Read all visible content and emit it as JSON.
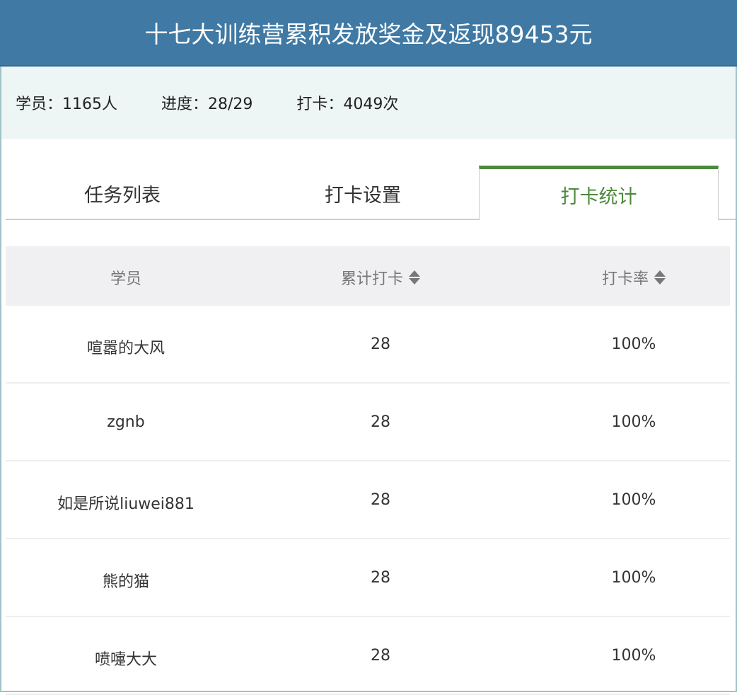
{
  "header": {
    "title": "十七大训练营累积发放奖金及返现89453元"
  },
  "stats": {
    "students": "学员：1165人",
    "progress": "进度：28/29",
    "checkins": "打卡：4049次"
  },
  "tabs": [
    {
      "label": "任务列表",
      "active": false
    },
    {
      "label": "打卡设置",
      "active": false
    },
    {
      "label": "打卡统计",
      "active": true
    }
  ],
  "table": {
    "columns": [
      "学员",
      "累计打卡",
      "打卡率"
    ],
    "rows": [
      {
        "name": "喧嚣的大风",
        "total": "28",
        "rate": "100%"
      },
      {
        "name": "zgnb",
        "total": "28",
        "rate": "100%"
      },
      {
        "name": "如是所说liuwei881",
        "total": "28",
        "rate": "100%"
      },
      {
        "name": "熊的猫",
        "total": "28",
        "rate": "100%"
      },
      {
        "name": "喷嚏大大",
        "total": "28",
        "rate": "100%"
      }
    ]
  },
  "colors": {
    "header": "#3f79a4",
    "accent": "#4d8a3c",
    "info_bg": "#eef5f5"
  },
  "icons": {
    "sort": "sort-updown-icon"
  }
}
